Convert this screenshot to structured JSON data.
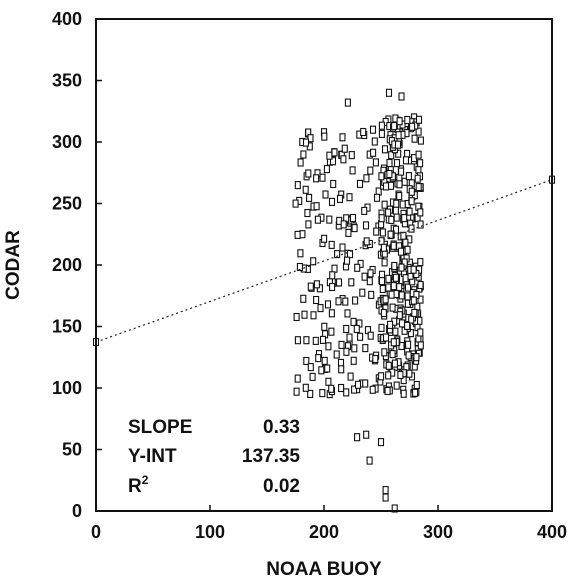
{
  "chart_data": {
    "type": "scatter",
    "title": "",
    "xlabel": "NOAA BUOY",
    "ylabel": "CODAR",
    "xlim": [
      0,
      400
    ],
    "ylim": [
      0,
      400
    ],
    "xticks": [
      "0",
      "100",
      "200",
      "300",
      "400"
    ],
    "yticks": [
      "0",
      "50",
      "100",
      "150",
      "200",
      "250",
      "300",
      "350",
      "400"
    ],
    "grid": false,
    "marker": "open-square",
    "regression": {
      "slope": 0.33,
      "intercept": 137.35,
      "r2": 0.02,
      "line_style": "dotted",
      "endpoints": [
        [
          0,
          137.35
        ],
        [
          400,
          269.35
        ]
      ]
    },
    "stats": [
      {
        "label": "SLOPE",
        "value": "0.33"
      },
      {
        "label": "Y-INT",
        "value": "137.35"
      },
      {
        "label": "R",
        "sup": "2",
        "value": "0.02"
      }
    ],
    "stats_position": "bottom-left",
    "clusters": [
      {
        "x_range": [
          175,
          250
        ],
        "y_range": [
          95,
          310
        ],
        "count": 180
      },
      {
        "x_range": [
          250,
          285
        ],
        "y_range": [
          95,
          320
        ],
        "count": 320
      }
    ],
    "points": [
      [
        221,
        332
      ],
      [
        257,
        340
      ],
      [
        268,
        337
      ],
      [
        263,
        316
      ],
      [
        279,
        320
      ],
      [
        243,
        310
      ],
      [
        231,
        306
      ],
      [
        200,
        308
      ],
      [
        186,
        307
      ],
      [
        177,
        265
      ],
      [
        181,
        300
      ],
      [
        176,
        97
      ],
      [
        190,
        109
      ],
      [
        205,
        95
      ],
      [
        215,
        100
      ],
      [
        229,
        99
      ],
      [
        279,
        96
      ],
      [
        229,
        60
      ],
      [
        237,
        62
      ],
      [
        250,
        56
      ],
      [
        240,
        41
      ],
      [
        254,
        17
      ],
      [
        254,
        11
      ],
      [
        262,
        2
      ]
    ]
  }
}
